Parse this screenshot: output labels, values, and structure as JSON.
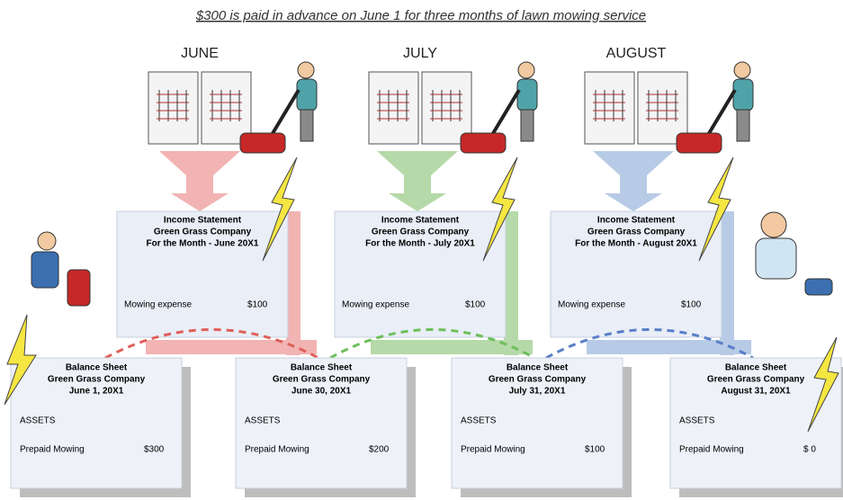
{
  "title": "$300 is paid in advance on June 1 for three months of lawn mowing service",
  "months": [
    "JUNE",
    "JULY",
    "AUGUST"
  ],
  "income_statements": [
    {
      "heading": "Income Statement",
      "company": "Green Grass Company",
      "period": "For the Month - June 20X1",
      "line_item": "Mowing expense",
      "amount": "$100"
    },
    {
      "heading": "Income Statement",
      "company": "Green Grass Company",
      "period": "For the Month - July 20X1",
      "line_item": "Mowing expense",
      "amount": "$100"
    },
    {
      "heading": "Income Statement",
      "company": "Green Grass Company",
      "period": "For the Month - August 20X1",
      "line_item": "Mowing expense",
      "amount": "$100"
    }
  ],
  "balance_sheets": [
    {
      "heading": "Balance Sheet",
      "company": "Green Grass Company",
      "date": "June 1, 20X1",
      "section": "ASSETS",
      "line_item": "Prepaid Mowing",
      "amount": "$300"
    },
    {
      "heading": "Balance Sheet",
      "company": "Green Grass Company",
      "date": "June 30, 20X1",
      "section": "ASSETS",
      "line_item": "Prepaid Mowing",
      "amount": "$200"
    },
    {
      "heading": "Balance Sheet",
      "company": "Green Grass Company",
      "date": "July 31, 20X1",
      "section": "ASSETS",
      "line_item": "Prepaid Mowing",
      "amount": "$100"
    },
    {
      "heading": "Balance Sheet",
      "company": "Green Grass Company",
      "date": "August 31, 20X1",
      "section": "ASSETS",
      "line_item": "Prepaid Mowing",
      "amount": "$ 0"
    }
  ]
}
